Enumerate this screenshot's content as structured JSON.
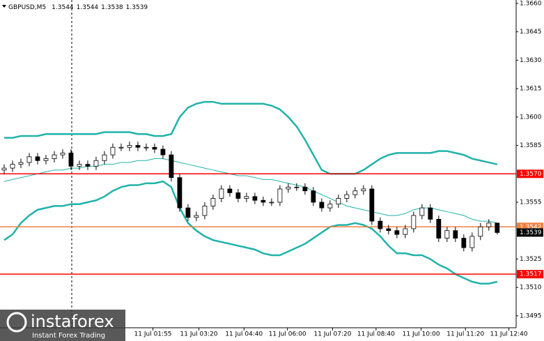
{
  "chart_data": {
    "type": "candlestick",
    "title": "GBPUSD,M5",
    "candles": {
      "open": [
        1.3572,
        1.3573,
        1.3575,
        1.3576,
        1.3579,
        1.3577,
        1.3578,
        1.358,
        1.3581,
        1.3574,
        1.3575,
        1.3574,
        1.3577,
        1.358,
        1.3584,
        1.3584,
        1.3585,
        1.3584,
        1.3584,
        1.3583,
        1.358,
        1.3568,
        1.3552,
        1.3547,
        1.3548,
        1.3553,
        1.3557,
        1.3562,
        1.356,
        1.3557,
        1.3558,
        1.3556,
        1.3555,
        1.3555,
        1.3562,
        1.3563,
        1.3563,
        1.3561,
        1.3555,
        1.3552,
        1.3554,
        1.3557,
        1.3559,
        1.3561,
        1.3562,
        1.3545,
        1.3541,
        1.354,
        1.3538,
        1.3541,
        1.3548,
        1.3552,
        1.3546,
        1.3536,
        1.354,
        1.3536,
        1.3531,
        1.3537,
        1.3542,
        1.3544
      ],
      "high": [
        1.3575,
        1.3577,
        1.3578,
        1.3581,
        1.3581,
        1.358,
        1.3582,
        1.3583,
        1.3583,
        1.3577,
        1.3577,
        1.3579,
        1.3582,
        1.3586,
        1.3586,
        1.3587,
        1.3587,
        1.3586,
        1.3586,
        1.3585,
        1.3582,
        1.357,
        1.3554,
        1.355,
        1.3555,
        1.3559,
        1.3564,
        1.3564,
        1.3562,
        1.356,
        1.356,
        1.3558,
        1.3557,
        1.3564,
        1.3565,
        1.3565,
        1.3565,
        1.3563,
        1.3557,
        1.3556,
        1.3559,
        1.3561,
        1.3563,
        1.3564,
        1.3564,
        1.3547,
        1.3543,
        1.3542,
        1.3543,
        1.355,
        1.3554,
        1.3554,
        1.3548,
        1.3542,
        1.3542,
        1.3538,
        1.3539,
        1.3544,
        1.3546,
        1.3544
      ],
      "low": [
        1.357,
        1.3571,
        1.3573,
        1.3574,
        1.3575,
        1.3575,
        1.3576,
        1.3578,
        1.3572,
        1.3572,
        1.3572,
        1.3572,
        1.3575,
        1.3578,
        1.3582,
        1.3582,
        1.3582,
        1.3582,
        1.3581,
        1.3578,
        1.3566,
        1.355,
        1.3545,
        1.3545,
        1.3546,
        1.3551,
        1.3555,
        1.3558,
        1.3555,
        1.3555,
        1.3554,
        1.3553,
        1.3553,
        1.3553,
        1.356,
        1.3561,
        1.3559,
        1.3553,
        1.355,
        1.355,
        1.3552,
        1.3555,
        1.3557,
        1.3559,
        1.3543,
        1.3539,
        1.3538,
        1.3536,
        1.3536,
        1.3539,
        1.3546,
        1.3544,
        1.3534,
        1.3534,
        1.3534,
        1.3529,
        1.3529,
        1.3535,
        1.354,
        1.3538
      ],
      "close": [
        1.3573,
        1.3575,
        1.3576,
        1.3579,
        1.3577,
        1.3578,
        1.358,
        1.3581,
        1.3574,
        1.3575,
        1.3574,
        1.3577,
        1.358,
        1.3584,
        1.3584,
        1.3585,
        1.3584,
        1.3584,
        1.3583,
        1.358,
        1.3568,
        1.3552,
        1.3547,
        1.3548,
        1.3553,
        1.3557,
        1.3562,
        1.356,
        1.3557,
        1.3558,
        1.3556,
        1.3555,
        1.3555,
        1.3562,
        1.3563,
        1.3563,
        1.3561,
        1.3555,
        1.3552,
        1.3554,
        1.3557,
        1.3559,
        1.3561,
        1.3562,
        1.3545,
        1.3541,
        1.354,
        1.3538,
        1.3541,
        1.3548,
        1.3552,
        1.3546,
        1.3536,
        1.354,
        1.3536,
        1.3531,
        1.3537,
        1.3542,
        1.3544,
        1.3539
      ]
    },
    "up_color": "#ffffff",
    "down_color": "#000000",
    "bands": [
      {
        "color": "#20b2aa",
        "width": 2.5,
        "values": [
          1.3589,
          1.3589,
          1.359,
          1.359,
          1.359,
          1.3591,
          1.3591,
          1.3591,
          1.3591,
          1.3591,
          1.3591,
          1.3591,
          1.3592,
          1.3592,
          1.3592,
          1.3592,
          1.3591,
          1.3591,
          1.359,
          1.359,
          1.3591,
          1.36,
          1.3605,
          1.3607,
          1.3608,
          1.3608,
          1.3607,
          1.3607,
          1.3607,
          1.3607,
          1.3607,
          1.3607,
          1.3606,
          1.3604,
          1.36,
          1.3595,
          1.3588,
          1.358,
          1.3572,
          1.357,
          1.357,
          1.357,
          1.357,
          1.3572,
          1.3575,
          1.3578,
          1.358,
          1.3581,
          1.3581,
          1.3581,
          1.3581,
          1.3581,
          1.3582,
          1.3582,
          1.3581,
          1.358,
          1.3578,
          1.3577,
          1.3576,
          1.3575
        ]
      },
      {
        "color": "#20b2aa",
        "width": 1,
        "values": [
          1.3566,
          1.3567,
          1.3568,
          1.3569,
          1.357,
          1.3571,
          1.3572,
          1.3572,
          1.3573,
          1.3573,
          1.3574,
          1.3574,
          1.3575,
          1.3575,
          1.3576,
          1.3576,
          1.3577,
          1.3577,
          1.3578,
          1.3578,
          1.3577,
          1.3576,
          1.3575,
          1.3574,
          1.3573,
          1.3572,
          1.3571,
          1.357,
          1.3569,
          1.3569,
          1.3568,
          1.3567,
          1.3567,
          1.3566,
          1.3565,
          1.3564,
          1.3563,
          1.3561,
          1.3559,
          1.3557,
          1.3555,
          1.3553,
          1.3552,
          1.3551,
          1.355,
          1.3549,
          1.3548,
          1.3548,
          1.3549,
          1.3551,
          1.3552,
          1.3552,
          1.3551,
          1.355,
          1.3549,
          1.3548,
          1.3546,
          1.3545,
          1.3545,
          1.3544
        ]
      },
      {
        "color": "#20b2aa",
        "width": 2.5,
        "values": [
          1.3535,
          1.3538,
          1.3544,
          1.3548,
          1.3551,
          1.3552,
          1.3553,
          1.3553,
          1.3554,
          1.3554,
          1.3555,
          1.3556,
          1.3558,
          1.3561,
          1.3563,
          1.3564,
          1.3564,
          1.3565,
          1.3565,
          1.3566,
          1.3563,
          1.3552,
          1.3544,
          1.354,
          1.3537,
          1.3535,
          1.3534,
          1.3533,
          1.3532,
          1.3531,
          1.353,
          1.3528,
          1.3527,
          1.3527,
          1.3529,
          1.3531,
          1.3533,
          1.3536,
          1.3539,
          1.3542,
          1.3543,
          1.3543,
          1.3544,
          1.3543,
          1.3541,
          1.3537,
          1.3532,
          1.3528,
          1.3528,
          1.3527,
          1.3527,
          1.3525,
          1.3522,
          1.352,
          1.3517,
          1.3515,
          1.3513,
          1.3512,
          1.3512,
          1.3513
        ]
      }
    ],
    "levels": [
      {
        "value": 1.357,
        "label": "1.3570",
        "color": "#ff0000"
      },
      {
        "value": 1.3542,
        "label": "1.3542",
        "color": "#f08040"
      },
      {
        "value": 1.3517,
        "label": "1.3517",
        "color": "#ff0000"
      }
    ],
    "xlim": [
      -0.5,
      61.6
    ],
    "xticks": [
      {
        "value": 17.8,
        "label": "11 Jul 01:55"
      },
      {
        "value": 23.3,
        "label": "11 Jul 03:20"
      },
      {
        "value": 28.7,
        "label": "11 Jul 04:40"
      },
      {
        "value": 33.9,
        "label": "11 Jul 06:00"
      },
      {
        "value": 39.3,
        "label": "11 Jul 07:20"
      },
      {
        "value": 44.5,
        "label": "11 Jul 08:40"
      },
      {
        "value": 49.9,
        "label": "11 Jul 10:00"
      },
      {
        "value": 55.2,
        "label": "11 Jul 11:20"
      },
      {
        "value": 60.4,
        "label": "11 Jul 12:40"
      }
    ],
    "ylim": [
      1.34887,
      1.36618
    ],
    "yticks": [
      {
        "value": 1.366,
        "label": "1.3660"
      },
      1.3645,
      {
        "value": 1.363,
        "label": "1.3630"
      },
      1.3615,
      {
        "value": 1.36,
        "label": "1.3600"
      },
      1.3585,
      1.3555,
      1.3525,
      {
        "value": 1.351,
        "label": "1.3510"
      },
      1.3495
    ]
  },
  "watermark": {
    "name": "instaforex",
    "tagline": "Instant Forex Trading"
  }
}
